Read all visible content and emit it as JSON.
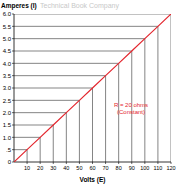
{
  "chart_data": {
    "type": "line",
    "watermark": "Technical Book Company",
    "y_label": "Amperes (I)",
    "x_label": "Volts (E)",
    "annotations": [
      "R = 20 ohms",
      "(Constant)"
    ],
    "x": [
      0,
      10,
      20,
      30,
      40,
      50,
      60,
      70,
      80,
      90,
      100,
      110,
      120
    ],
    "values": [
      0,
      0.5,
      1.0,
      1.5,
      2.0,
      2.5,
      3.0,
      3.5,
      4.0,
      4.5,
      5.0,
      5.5,
      6.0
    ],
    "color": "#e3262e",
    "xlim": [
      0,
      120
    ],
    "ylim": [
      0,
      6
    ],
    "xticks": [
      10,
      20,
      30,
      40,
      50,
      60,
      70,
      80,
      90,
      100,
      110,
      120
    ],
    "yticks": [
      0,
      {
        "value": 0.5,
        "label": ".5"
      },
      {
        "value": 1,
        "label": "1.0"
      },
      {
        "value": 1.5,
        "label": "1.5"
      },
      {
        "value": 2,
        "label": "2.0"
      },
      {
        "value": 2.5,
        "label": "2.5"
      },
      {
        "value": 3,
        "label": "3.0"
      },
      {
        "value": 3.5,
        "label": "3.5"
      },
      {
        "value": 4,
        "label": "4.0"
      },
      {
        "value": 4.5,
        "label": "4.5"
      },
      {
        "value": 5,
        "label": "5.0"
      },
      {
        "value": 5.5,
        "label": "5.5"
      },
      {
        "value": 6,
        "label": "6.0"
      }
    ],
    "grid": true
  }
}
